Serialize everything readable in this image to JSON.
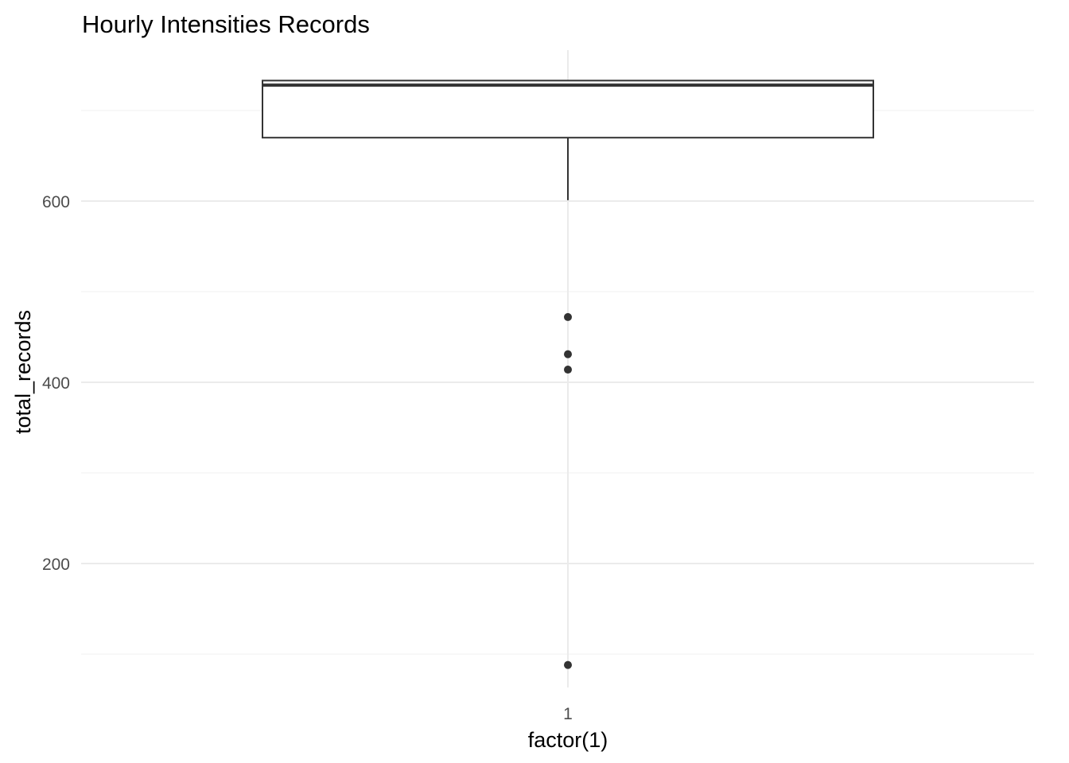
{
  "chart_data": {
    "type": "boxplot",
    "title": "Hourly Intensities Records",
    "xlabel": "factor(1)",
    "ylabel": "total_records",
    "categories": [
      "1"
    ],
    "ylim": [
      70,
      735
    ],
    "y_ticks": [
      200,
      400,
      600
    ],
    "y_tick_labels": [
      "200",
      "400",
      "600"
    ],
    "grid": true,
    "box": {
      "category": "1",
      "q1": 670,
      "median": 728,
      "q3": 733,
      "whisker_low": 601,
      "whisker_high": 733,
      "outliers": [
        472,
        431,
        414,
        88
      ]
    },
    "colors": {
      "box_line": "#333333",
      "box_fill": "#ffffff",
      "grid": "#ebebeb",
      "tick_text": "#4d4d4d"
    }
  }
}
